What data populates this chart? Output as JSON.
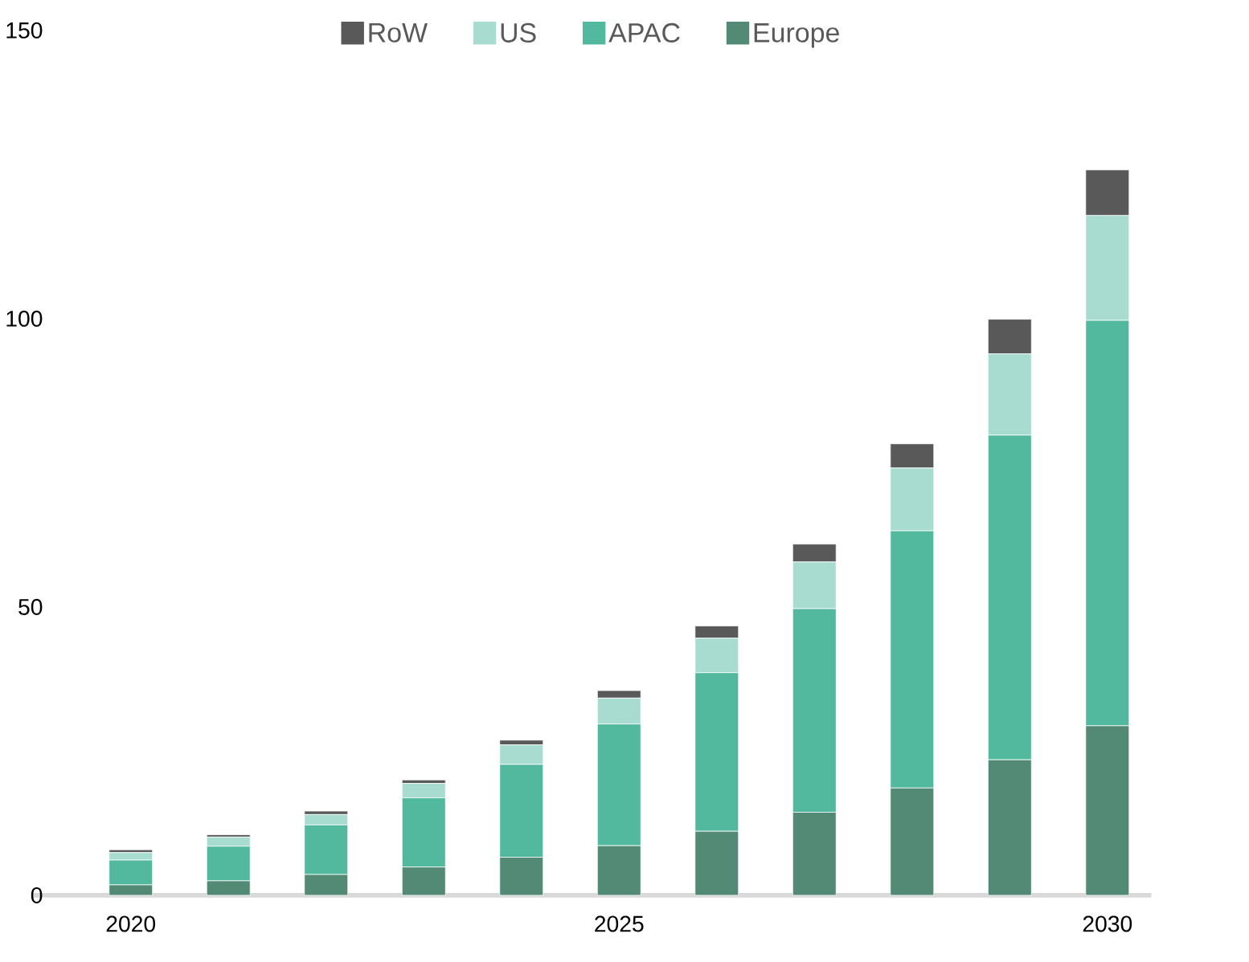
{
  "chart_data": {
    "type": "bar",
    "stacked": true,
    "legend": "top",
    "categories": [
      "2020",
      null,
      null,
      null,
      null,
      "2025",
      null,
      null,
      null,
      null,
      "2030"
    ],
    "series": [
      {
        "name": "Europe",
        "color": "#528a76",
        "values": [
          1.8,
          2.5,
          3.6,
          4.9,
          6.6,
          8.6,
          11.1,
          14.4,
          18.6,
          23.5,
          29.4
        ]
      },
      {
        "name": "APAC",
        "color": "#52b89e",
        "values": [
          4.3,
          6.0,
          8.6,
          12.0,
          16.1,
          21.1,
          27.5,
          35.3,
          44.6,
          56.3,
          70.3
        ]
      },
      {
        "name": "US",
        "color": "#a9dcd0",
        "values": [
          1.3,
          1.6,
          1.8,
          2.5,
          3.4,
          4.5,
          6.0,
          8.1,
          10.9,
          14.1,
          18.2
        ]
      },
      {
        "name": "RoW",
        "color": "#595959",
        "values": [
          0.5,
          0.4,
          0.6,
          0.6,
          0.8,
          1.3,
          2.1,
          3.1,
          4.2,
          6.0,
          7.9
        ]
      }
    ],
    "ylim": [
      0,
      150
    ],
    "yticks": [
      0,
      50,
      100,
      150
    ]
  }
}
